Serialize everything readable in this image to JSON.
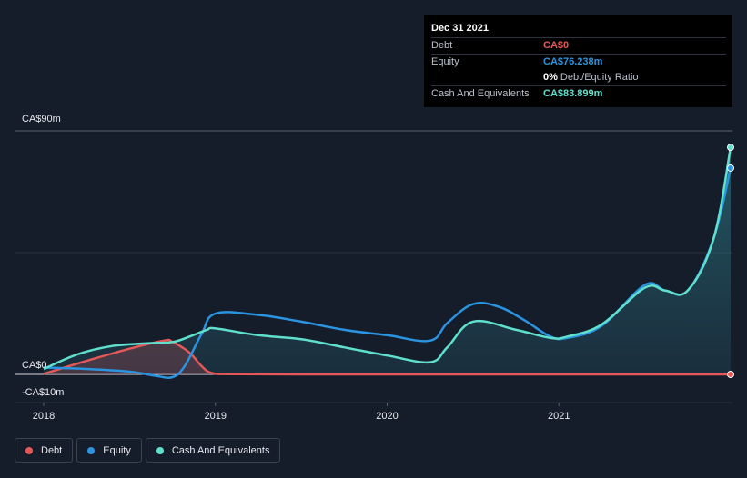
{
  "tooltip": {
    "date": "Dec 31 2021",
    "rows": [
      {
        "label": "Debt",
        "value": "CA$0",
        "color": "#e45858"
      },
      {
        "label": "Equity",
        "value": "CA$76.238m",
        "color": "#2b94e0"
      },
      {
        "label": "",
        "value": "0%",
        "suffix": "Debt/Equity Ratio",
        "color": "#ffffff"
      },
      {
        "label": "Cash And Equivalents",
        "value": "CA$83.899m",
        "color": "#5fe0cc"
      }
    ]
  },
  "legend": [
    {
      "label": "Debt",
      "color": "#e45858"
    },
    {
      "label": "Equity",
      "color": "#2b94e0"
    },
    {
      "label": "Cash And Equivalents",
      "color": "#5fe0cc"
    }
  ],
  "chart_data": {
    "type": "area",
    "y_tick_labels": [
      "CA$90m",
      "CA$0",
      "-CA$10m"
    ],
    "x_tick_labels": [
      "2018",
      "2019",
      "2020",
      "2021"
    ],
    "ylim": [
      -10,
      90
    ],
    "xlim": [
      2018.0,
      2022.0
    ],
    "grid": true,
    "legend_position": "bottom-left",
    "series": [
      {
        "name": "Debt",
        "color": "#e45858",
        "x": [
          2018.0,
          2018.25,
          2018.5,
          2018.7,
          2018.75,
          2018.85,
          2018.92,
          2018.98,
          2019.1,
          2019.5,
          2020.0,
          2020.5,
          2021.0,
          2021.5,
          2022.0
        ],
        "y": [
          0.2,
          5,
          9.5,
          12.5,
          12,
          8,
          3,
          0.5,
          0.1,
          0,
          0,
          0,
          0,
          0,
          0
        ]
      },
      {
        "name": "Equity",
        "color": "#2b94e0",
        "x": [
          2018.0,
          2018.25,
          2018.5,
          2018.65,
          2018.75,
          2018.82,
          2018.92,
          2019.0,
          2019.25,
          2019.5,
          2019.75,
          2020.0,
          2020.25,
          2020.35,
          2020.5,
          2020.65,
          2020.8,
          2020.95,
          2021.05,
          2021.25,
          2021.5,
          2021.62,
          2021.75,
          2021.9,
          2022.0
        ],
        "y": [
          2.5,
          2,
          1,
          -0.5,
          -1,
          3,
          15,
          22.5,
          22,
          19.5,
          16.5,
          14.5,
          12.5,
          19,
          26,
          25,
          20,
          14,
          13.5,
          18,
          33,
          31,
          31,
          50,
          76.238
        ]
      },
      {
        "name": "Cash And Equivalents",
        "color": "#5fe0cc",
        "x": [
          2018.0,
          2018.2,
          2018.4,
          2018.6,
          2018.75,
          2018.85,
          2018.95,
          2019.0,
          2019.25,
          2019.5,
          2019.75,
          2020.0,
          2020.25,
          2020.35,
          2020.5,
          2020.75,
          2020.95,
          2021.05,
          2021.25,
          2021.5,
          2021.62,
          2021.75,
          2021.9,
          2022.0
        ],
        "y": [
          2,
          7.5,
          10.5,
          11.5,
          12,
          14,
          16.5,
          17,
          14.5,
          13,
          10,
          7,
          4.5,
          10,
          19.5,
          16.5,
          13.5,
          14,
          18.5,
          32,
          31,
          31,
          50,
          83.899
        ]
      }
    ]
  }
}
